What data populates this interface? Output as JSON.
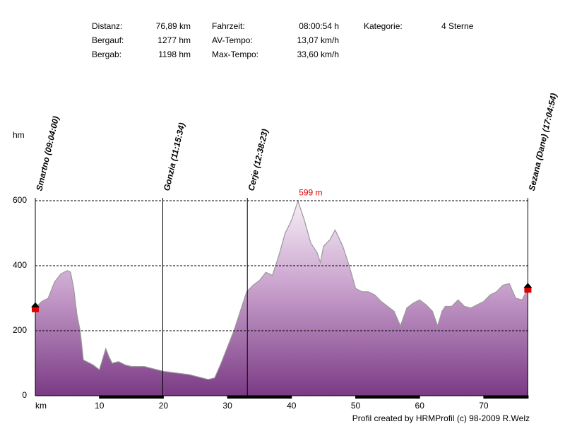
{
  "stats": [
    [
      [
        "Distanz:",
        "76,89 km"
      ],
      [
        "Bergauf:",
        "1277 hm"
      ],
      [
        "Bergab:",
        "1198 hm"
      ]
    ],
    [
      [
        "Fahrzeit:",
        "08:00:54 h"
      ],
      [
        "AV-Tempo:",
        "13,07 km/h"
      ],
      [
        "Max-Tempo:",
        "33,60 km/h"
      ]
    ],
    [
      [
        "Kategorie:",
        "4 Sterne"
      ]
    ]
  ],
  "chart_data": {
    "type": "area",
    "y_label": "hm",
    "x_label": "km",
    "x": [
      0,
      1,
      2,
      3,
      4,
      5,
      5.5,
      6,
      6.5,
      7,
      7.5,
      8,
      9,
      10,
      11,
      11.5,
      12,
      13,
      14,
      15,
      17,
      18,
      19,
      20,
      22,
      24,
      26,
      27,
      28,
      29,
      30,
      31,
      32,
      33,
      34,
      35,
      36,
      37,
      38,
      39,
      40,
      41,
      42,
      43,
      44,
      44.5,
      45,
      46,
      46.8,
      48,
      49,
      50,
      51,
      52,
      53,
      54,
      55,
      56,
      57,
      58,
      59,
      60,
      61,
      62,
      62.8,
      63.5,
      64,
      65,
      66,
      67,
      68,
      69,
      70,
      71,
      72,
      73,
      74,
      75,
      76,
      76.89
    ],
    "values": [
      270,
      290,
      300,
      350,
      375,
      385,
      380,
      330,
      250,
      200,
      110,
      105,
      95,
      80,
      145,
      120,
      100,
      105,
      95,
      90,
      90,
      85,
      80,
      75,
      70,
      65,
      55,
      50,
      55,
      100,
      150,
      200,
      260,
      320,
      340,
      355,
      380,
      370,
      430,
      500,
      540,
      599,
      540,
      470,
      440,
      410,
      460,
      480,
      510,
      460,
      400,
      330,
      320,
      320,
      310,
      290,
      275,
      260,
      215,
      270,
      285,
      295,
      280,
      260,
      215,
      260,
      275,
      275,
      295,
      275,
      270,
      280,
      290,
      310,
      320,
      340,
      345,
      300,
      295,
      330
    ],
    "xlim": [
      0,
      77
    ],
    "ylim": [
      0,
      600
    ],
    "xticks": [
      10,
      20,
      30,
      40,
      50,
      60,
      70
    ],
    "yticks": [
      0,
      200,
      400,
      600
    ],
    "grid": true,
    "waypoints": [
      {
        "x": 0,
        "label": "Smartno (09:04:00)"
      },
      {
        "x": 19.9,
        "label": "Gonzia (11:15:34)"
      },
      {
        "x": 33.1,
        "label": "Cerje (12:38:23)"
      },
      {
        "x": 76.89,
        "label": "Sezana (Dane) (17:04:54)"
      }
    ],
    "annotations": [
      {
        "x": 41,
        "y": 599,
        "text": "599 m"
      }
    ]
  },
  "footer": "Profil created by HRMProfil (c) 98-2009 R.Welz"
}
